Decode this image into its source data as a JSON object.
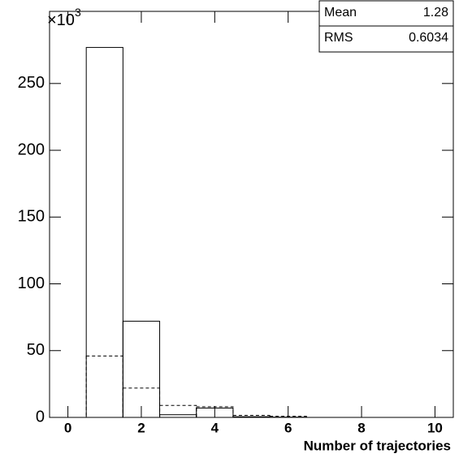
{
  "chart_data": {
    "type": "histogram",
    "x_label": "Number of trajectories",
    "y_multiplier": {
      "base": "×10",
      "exponent": "3"
    },
    "bins": [
      -0.5,
      0.5,
      1.5,
      2.5,
      3.5,
      4.5,
      5.5,
      6.5,
      7.5,
      8.5,
      9.5,
      10.5
    ],
    "series": [
      {
        "color": "#000000",
        "line_style": "solid",
        "values": [
          0,
          277,
          72,
          2,
          7,
          0.5,
          0.2,
          0,
          0,
          0,
          0
        ]
      },
      {
        "color": "#000000",
        "line_style": "dashed",
        "values": [
          0,
          46,
          22,
          9,
          8,
          1.5,
          0.8,
          0,
          0,
          0,
          0
        ]
      }
    ],
    "xlim": [
      -0.5,
      10.5
    ],
    "xticks": [
      0,
      2,
      4,
      6,
      8,
      10
    ],
    "ylim": [
      0,
      304
    ],
    "yticks": [
      0,
      50,
      100,
      150,
      200,
      250
    ],
    "stats": [
      {
        "label": "Mean",
        "value": 1.28
      },
      {
        "label": "RMS",
        "value": 0.6034
      }
    ]
  }
}
